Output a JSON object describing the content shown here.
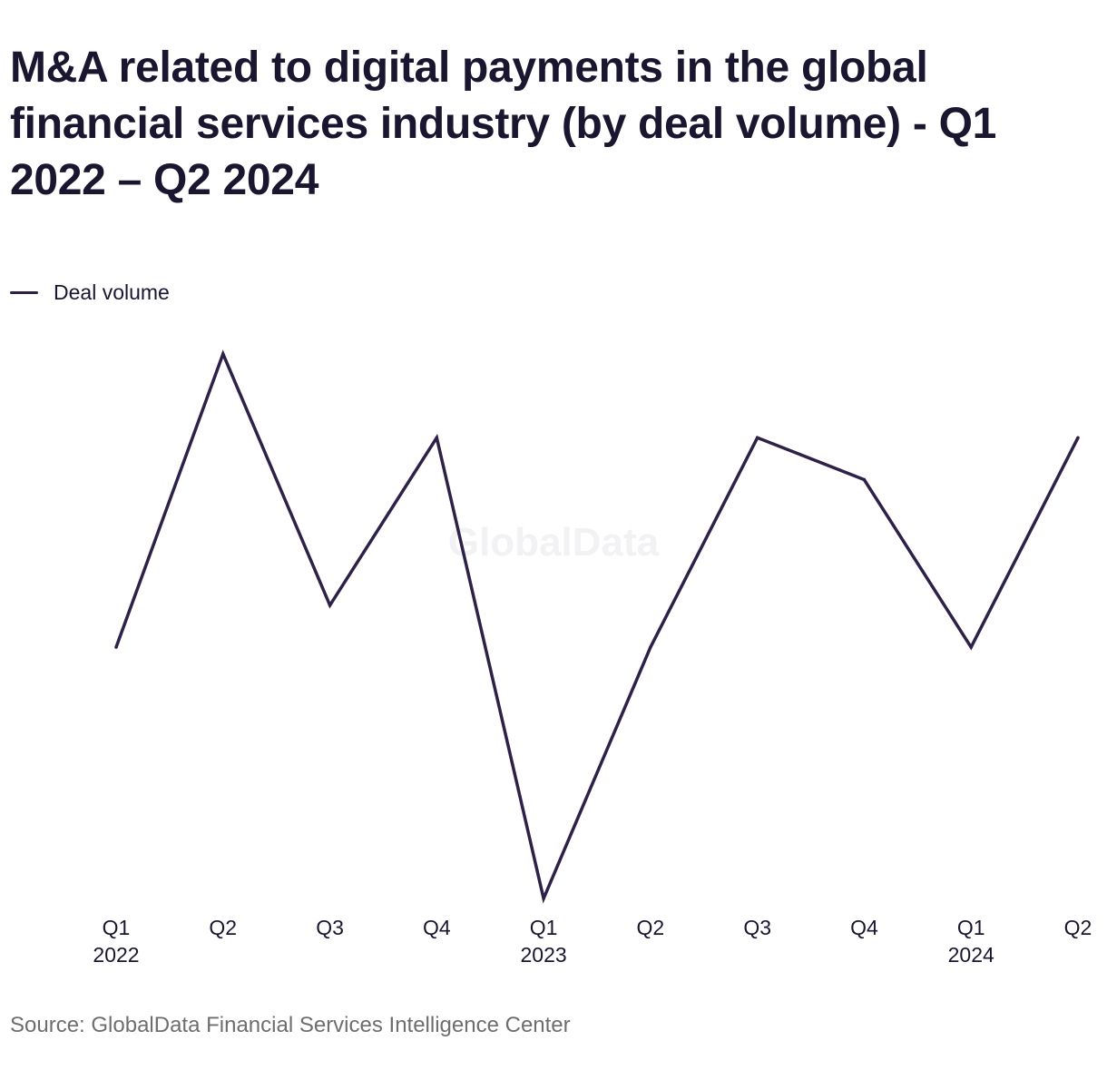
{
  "chart_data": {
    "type": "line",
    "title": "M&A related to digital payments in the global financial services industry (by deal volume) - Q1 2022 – Q2 2024",
    "xlabel": "",
    "ylabel": "",
    "legend_position": "top-left",
    "grid": false,
    "y_axis_visible": false,
    "categories": [
      "Q1 2022",
      "Q2 2022",
      "Q3 2022",
      "Q4 2022",
      "Q1 2023",
      "Q2 2023",
      "Q3 2023",
      "Q4 2023",
      "Q1 2024",
      "Q2 2024"
    ],
    "x_tick_labels": [
      {
        "quarter": "Q1",
        "year": "2022"
      },
      {
        "quarter": "Q2",
        "year": ""
      },
      {
        "quarter": "Q3",
        "year": ""
      },
      {
        "quarter": "Q4",
        "year": ""
      },
      {
        "quarter": "Q1",
        "year": "2023"
      },
      {
        "quarter": "Q2",
        "year": ""
      },
      {
        "quarter": "Q3",
        "year": ""
      },
      {
        "quarter": "Q4",
        "year": ""
      },
      {
        "quarter": "Q1",
        "year": "2024"
      },
      {
        "quarter": "Q2",
        "year": ""
      }
    ],
    "series": [
      {
        "name": "Deal volume",
        "color": "#2e2147",
        "values": [
          9,
          16,
          10,
          14,
          3,
          9,
          14,
          13,
          9,
          14
        ]
      }
    ],
    "ylim": [
      3,
      16
    ]
  },
  "watermark": "GlobalData",
  "source": "Source: GlobalData Financial Services Intelligence Center"
}
